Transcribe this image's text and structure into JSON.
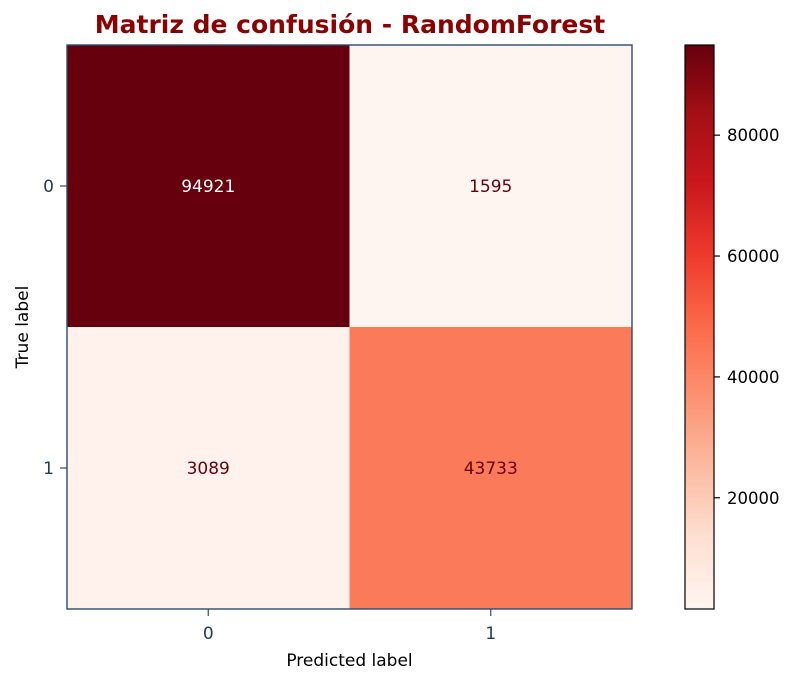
{
  "chart_data": {
    "type": "heatmap",
    "title": "Matriz de confusión - RandomForest",
    "xlabel": "Predicted label",
    "ylabel": "True label",
    "x_categories": [
      "0",
      "1"
    ],
    "y_categories": [
      "0",
      "1"
    ],
    "values": [
      [
        94921,
        1595
      ],
      [
        3089,
        43733
      ]
    ],
    "colormap": "Reds",
    "colorbar": {
      "range": [
        1595,
        94921
      ],
      "ticks": [
        20000,
        40000,
        60000,
        80000
      ]
    }
  },
  "colors": {
    "title": "#8b0000",
    "tick_label": "#1f3a5f",
    "frame": "#2c4a6e",
    "text_light": "#ffffff",
    "text_dark": "#67000d",
    "colormap_stops": [
      "#fff5f0",
      "#fee0d2",
      "#fcbba1",
      "#fc9272",
      "#fb6a4a",
      "#ef3b2c",
      "#cb181d",
      "#a50f15",
      "#67000d"
    ]
  }
}
